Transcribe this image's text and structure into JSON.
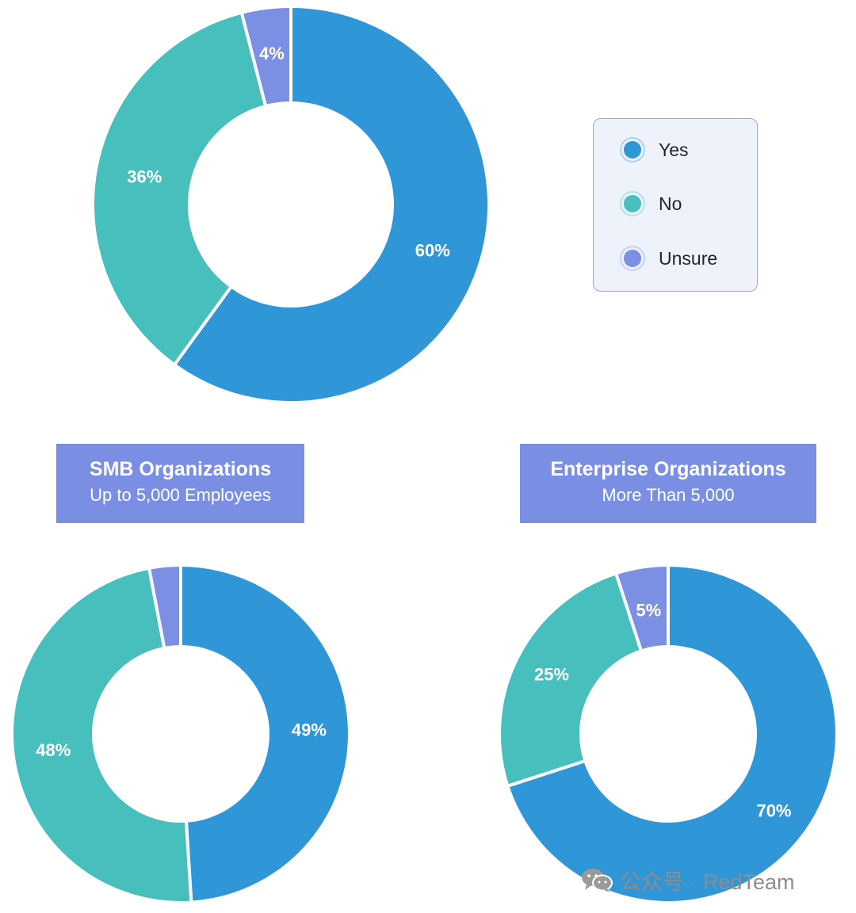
{
  "colors": {
    "Yes": "#2f96d8",
    "No": "#47bfbd",
    "Unsure": "#7b8fe3"
  },
  "legend": {
    "items": [
      {
        "label": "Yes",
        "color": "#2f96d8"
      },
      {
        "label": "No",
        "color": "#47bfbd"
      },
      {
        "label": "Unsure",
        "color": "#7b8fe3"
      }
    ]
  },
  "groups": {
    "smb": {
      "title": "SMB Organizations",
      "subtitle": "Up to 5,000 Employees"
    },
    "enterprise": {
      "title": "Enterprise Organizations",
      "subtitle": "More Than 5,000"
    }
  },
  "watermark": {
    "text": "公众号 · RedTeam",
    "icon": "wechat-icon"
  },
  "chart_data": [
    {
      "type": "pie",
      "title": "",
      "categories": [
        "Yes",
        "No",
        "Unsure"
      ],
      "values": [
        60,
        36,
        4
      ],
      "labels": [
        "60%",
        "36%",
        "4%"
      ]
    },
    {
      "type": "pie",
      "title": "SMB Organizations",
      "categories": [
        "Yes",
        "No",
        "Unsure"
      ],
      "values": [
        49,
        48,
        3
      ],
      "labels": [
        "49%",
        "48%",
        ""
      ]
    },
    {
      "type": "pie",
      "title": "Enterprise Organizations",
      "categories": [
        "Yes",
        "No",
        "Unsure"
      ],
      "values": [
        70,
        25,
        5
      ],
      "labels": [
        "70%",
        "25%",
        "5%"
      ]
    }
  ]
}
